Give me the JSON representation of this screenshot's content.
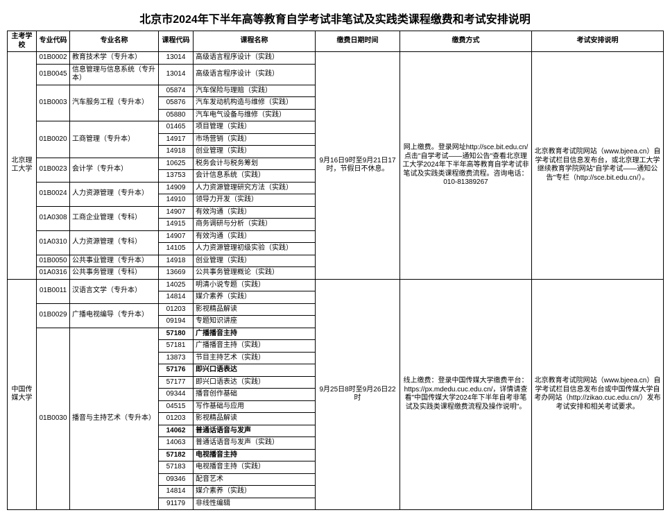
{
  "title": "北京市2024年下半年高等教育自学考试非笔试及实践类课程缴费和考试安排说明",
  "headers": {
    "school": "主考学校",
    "majorCode": "专业代码",
    "majorName": "专业名称",
    "courseCode": "课程代码",
    "courseName": "课程名称",
    "payTime": "缴费日期时间",
    "payMethod": "缴费方式",
    "examNote": "考试安排说明"
  },
  "g1": {
    "school": "北京理工大学",
    "payTime": "9月16日9时至9月21日17时，节假日不休息。",
    "payMethod": "网上缴费。登录网址http://sce.bit.edu.cn/ 点击\"自学考试——通知公告\"查看北京理工大学2024年下半年高等教育自学考试非笔试及实践类课程缴费流程。咨询电话：010-81389267",
    "examNote": "北京教育考试院网站（www.bjeea.cn）自学考试栏目信息发布台，或北京理工大学继续教育学院网站\"自学考试——通知公告\"专栏（http://sce.bit.edu.cn/）。",
    "m": [
      {
        "code": "01B0002",
        "name": "教育技术学（专升本）",
        "c": [
          [
            "13014",
            "高级语言程序设计（实践）"
          ]
        ]
      },
      {
        "code": "01B0045",
        "name": "信息管理与信息系统（专升本）",
        "c": [
          [
            "13014",
            "高级语言程序设计（实践）"
          ]
        ]
      },
      {
        "code": "01B0003",
        "name": "汽车服务工程（专升本）",
        "c": [
          [
            "05874",
            "汽车保险与理赔（实践）"
          ],
          [
            "05876",
            "汽车发动机构造与维修（实践）"
          ],
          [
            "05880",
            "汽车电气设备与维修（实践）"
          ]
        ]
      },
      {
        "code": "01B0020",
        "name": "工商管理（专升本）",
        "c": [
          [
            "01465",
            "项目管理（实践）"
          ],
          [
            "14917",
            "市场营销（实践）"
          ],
          [
            "14918",
            "创业管理（实践）"
          ]
        ]
      },
      {
        "code": "01B0023",
        "name": "会计学（专升本）",
        "c": [
          [
            "10625",
            "税务会计与税务筹划"
          ],
          [
            "13753",
            "会计信息系统（实践）"
          ]
        ]
      },
      {
        "code": "01B0024",
        "name": "人力资源管理（专升本）",
        "c": [
          [
            "14909",
            "人力资源管理研究方法（实践）"
          ],
          [
            "14910",
            "领导力开发（实践）"
          ]
        ]
      },
      {
        "code": "01A0308",
        "name": "工商企业管理（专科）",
        "c": [
          [
            "14907",
            "有效沟通（实践）"
          ],
          [
            "14915",
            "商务调研与分析（实践）"
          ]
        ]
      },
      {
        "code": "01A0310",
        "name": "人力资源管理（专科）",
        "c": [
          [
            "14907",
            "有效沟通（实践）"
          ],
          [
            "14105",
            "人力资源管理初级实验（实践）"
          ]
        ]
      },
      {
        "code": "01B0050",
        "name": "公共事业管理（专升本）",
        "c": [
          [
            "14918",
            "创业管理（实践）"
          ]
        ]
      },
      {
        "code": "01A0316",
        "name": "公共事务管理（专科）",
        "c": [
          [
            "13669",
            "公共事务管理概论（实践）"
          ]
        ]
      }
    ]
  },
  "g2": {
    "school": "中国传媒大学",
    "payTime": "9月25日8时至9月26日22时",
    "payMethod": "线上缴费：登录中国传媒大学缴费平台：https://px.mdedu.cuc.edu.cn/，详情请查看\"中国传媒大学2024年下半年自考非笔试及实践类课程缴费流程及操作说明\"。",
    "examNote": "北京教育考试院网站（www.bjeea.cn）自学考试栏目信息发布台或中国传媒大学自考办网站（http://zikao.cuc.edu.cn/）发布考试安排和相关考试要求。",
    "m": [
      {
        "code": "01B0011",
        "name": "汉语言文学（专升本）",
        "c": [
          [
            "14025",
            "明清小说专题（实践）"
          ],
          [
            "14814",
            "媒介素养（实践）"
          ]
        ]
      },
      {
        "code": "01B0029",
        "name": "广播电视编导（专升本）",
        "c": [
          [
            "01203",
            "影视精品解读"
          ],
          [
            "09194",
            "专题知识讲座"
          ]
        ]
      },
      {
        "code": "01B0030",
        "name": "播音与主持艺术（专升本）",
        "c": [
          [
            "57180",
            "广播播音主持",
            true
          ],
          [
            "57181",
            "广播播音主持（实践）"
          ],
          [
            "13873",
            "节目主持艺术（实践）"
          ],
          [
            "57176",
            "即兴口语表达",
            true
          ],
          [
            "57177",
            "即兴口语表达（实践）"
          ],
          [
            "09344",
            "播音创作基础"
          ],
          [
            "04515",
            "写作基础与应用"
          ],
          [
            "01203",
            "影视精品解读"
          ],
          [
            "14062",
            "普通话语音与发声",
            true
          ],
          [
            "14063",
            "普通话语音与发声（实践）"
          ],
          [
            "57182",
            "电视播音主持",
            true
          ],
          [
            "57183",
            "电视播音主持（实践）"
          ],
          [
            "09346",
            "配音艺术"
          ],
          [
            "14814",
            "媒介素养（实践）"
          ],
          [
            "91179",
            "非线性编辑"
          ]
        ]
      }
    ]
  }
}
